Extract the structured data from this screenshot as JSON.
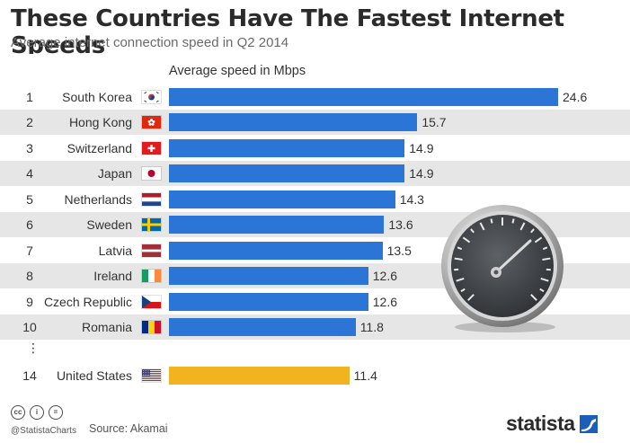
{
  "title": "These Countries Have The Fastest Internet Speeds",
  "subtitle": "Average internet connection speed in Q2 2014",
  "chart_data": {
    "type": "bar",
    "orientation": "horizontal",
    "value_label": "Average speed in Mbps",
    "rows": [
      {
        "rank": "1",
        "country": "South Korea",
        "value": 24.6,
        "flag": "south-korea-flag"
      },
      {
        "rank": "2",
        "country": "Hong Kong",
        "value": 15.7,
        "flag": "hong-kong-flag"
      },
      {
        "rank": "3",
        "country": "Switzerland",
        "value": 14.9,
        "flag": "switzerland-flag"
      },
      {
        "rank": "4",
        "country": "Japan",
        "value": 14.9,
        "flag": "japan-flag"
      },
      {
        "rank": "5",
        "country": "Netherlands",
        "value": 14.3,
        "flag": "netherlands-flag"
      },
      {
        "rank": "6",
        "country": "Sweden",
        "value": 13.6,
        "flag": "sweden-flag"
      },
      {
        "rank": "7",
        "country": "Latvia",
        "value": 13.5,
        "flag": "latvia-flag"
      },
      {
        "rank": "8",
        "country": "Ireland",
        "value": 12.6,
        "flag": "ireland-flag"
      },
      {
        "rank": "9",
        "country": "Czech Republic",
        "value": 12.6,
        "flag": "czech-republic-flag"
      },
      {
        "rank": "10",
        "country": "Romania",
        "value": 11.8,
        "flag": "romania-flag"
      },
      {
        "rank": "14",
        "country": "United States",
        "value": 11.4,
        "flag": "united-states-flag",
        "highlight": true
      }
    ],
    "ellipsis": "⋮",
    "bar_color": "#2a75d6",
    "highlight_color": "#f1b320",
    "xlim": [
      0,
      24.6
    ],
    "grid": false
  },
  "footer": {
    "handle": "@StatistaCharts",
    "source": "Source: Akamai",
    "logo": "statista",
    "license_icons": [
      "creative-commons-icon",
      "attribution-icon",
      "no-derivatives-icon"
    ],
    "license_glyphs": [
      "cc",
      "i",
      "="
    ]
  },
  "colors": {
    "logo_blue": "#1b5fb8",
    "row_alt": "#e6e6e6"
  },
  "decoration": "speedometer-icon"
}
